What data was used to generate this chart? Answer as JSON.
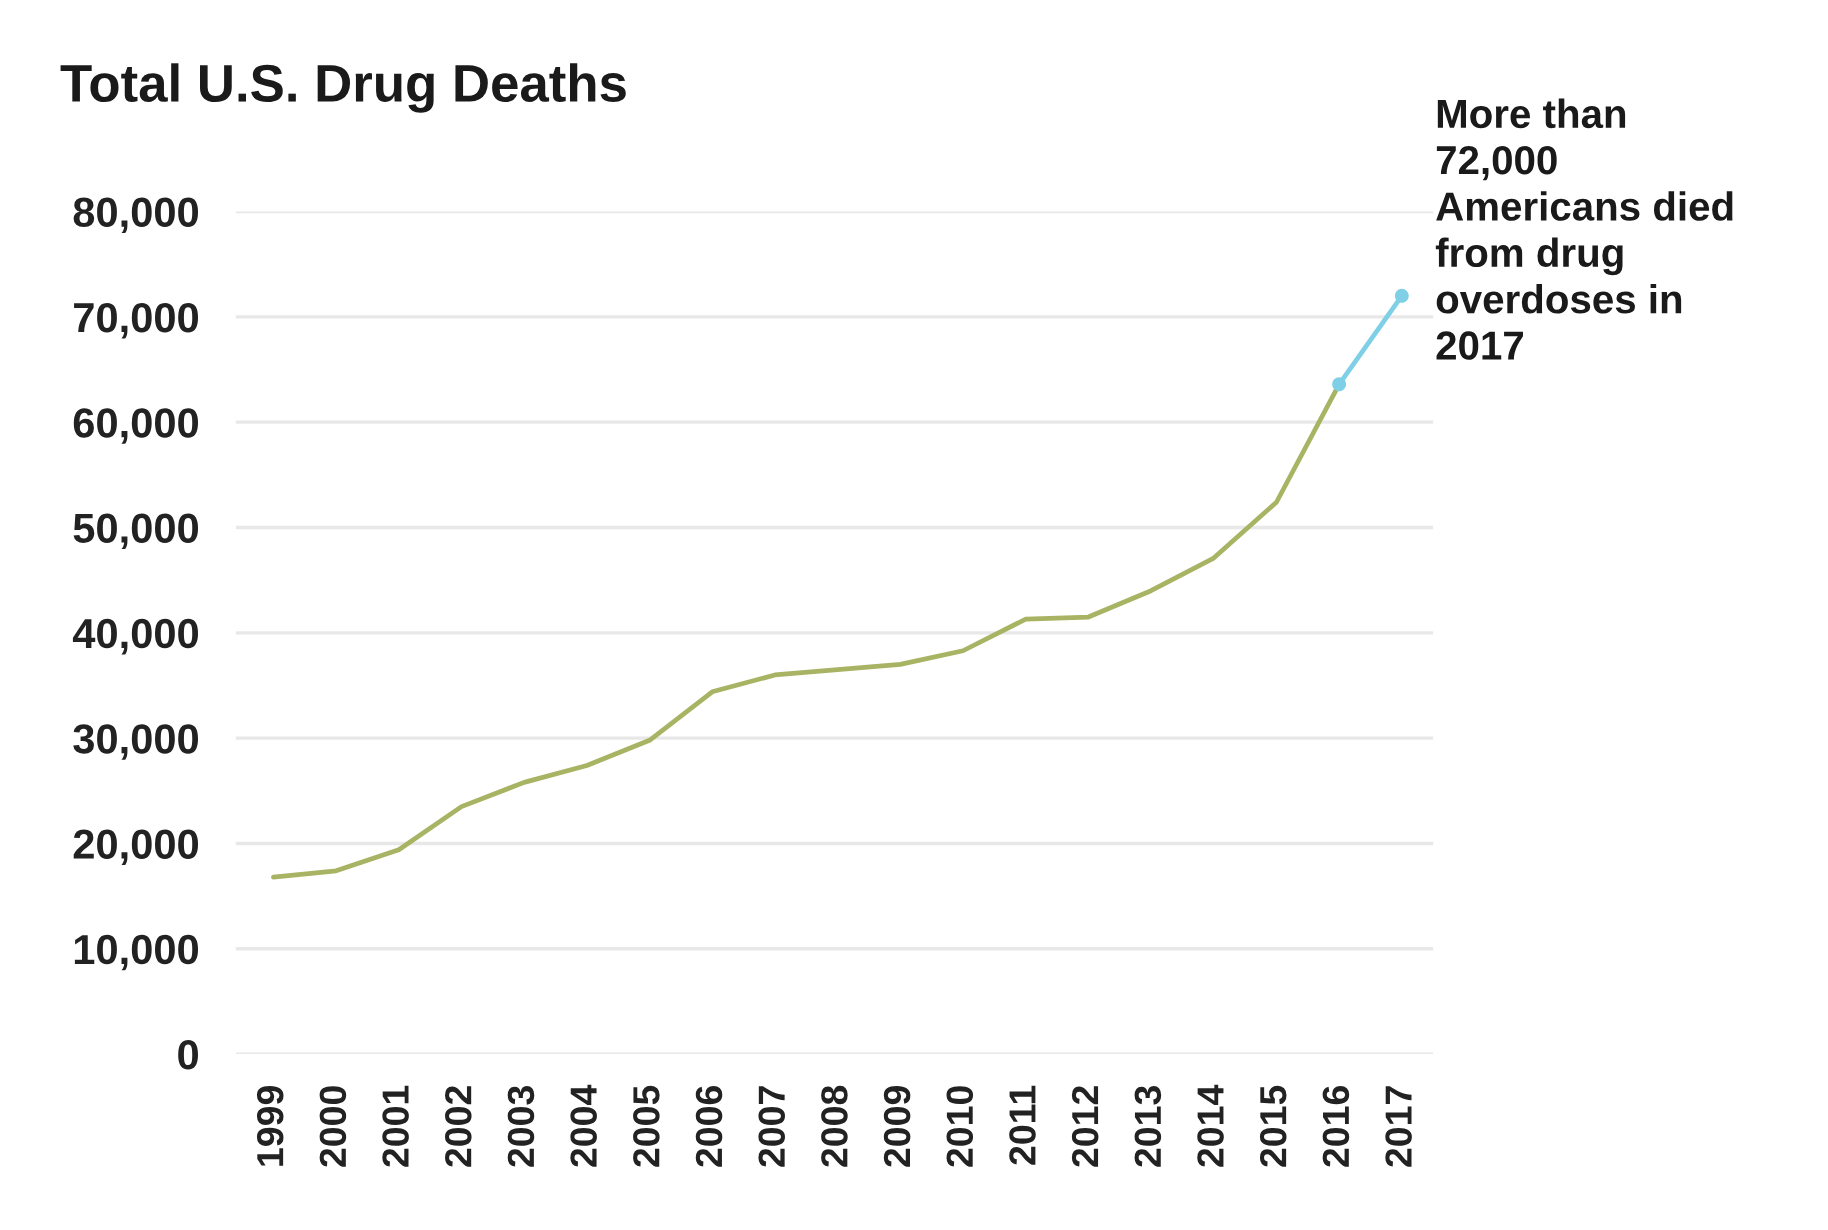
{
  "chart_data": {
    "type": "line",
    "title": "Total U.S. Drug Deaths",
    "categories": [
      "1999",
      "2000",
      "2001",
      "2002",
      "2003",
      "2004",
      "2005",
      "2006",
      "2007",
      "2008",
      "2009",
      "2010",
      "2011",
      "2012",
      "2013",
      "2014",
      "2015",
      "2016",
      "2017"
    ],
    "series": [
      {
        "color": "#a8b464",
        "values": [
          16800,
          17400,
          19400,
          23500,
          25800,
          27400,
          29800,
          34400,
          36000,
          36500,
          37000,
          38300,
          41300,
          41500,
          44000,
          47100,
          52400,
          63600,
          null
        ]
      },
      {
        "color": "#7fd0e6",
        "marker": "circle",
        "values": [
          null,
          null,
          null,
          null,
          null,
          null,
          null,
          null,
          null,
          null,
          null,
          null,
          null,
          null,
          null,
          null,
          null,
          63600,
          72000
        ]
      }
    ],
    "ylim": [
      0,
      80000
    ],
    "yticks": [
      0,
      {
        "value": 10000,
        "label": "10,000"
      },
      {
        "value": 20000,
        "label": "20,000"
      },
      {
        "value": 30000,
        "label": "30,000"
      },
      {
        "value": 40000,
        "label": "40,000"
      },
      {
        "value": 50000,
        "label": "50,000"
      },
      {
        "value": 60000,
        "label": "60,000"
      },
      {
        "value": 70000,
        "label": "70,000"
      },
      {
        "value": 80000,
        "label": "80,000"
      }
    ],
    "grid": "y",
    "annotations": [
      {
        "text": "More than\n72,000\nAmericans died\nfrom drug\noverdoses in\n2017",
        "x": "2017",
        "y": 72000
      }
    ]
  }
}
